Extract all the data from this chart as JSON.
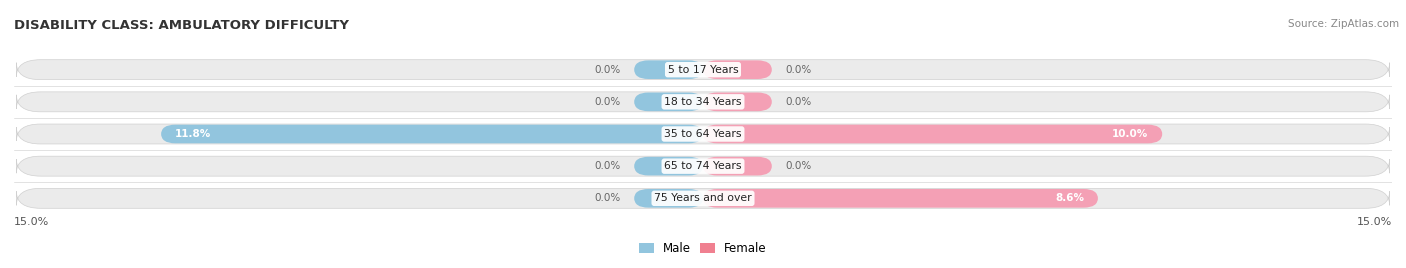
{
  "title": "DISABILITY CLASS: AMBULATORY DIFFICULTY",
  "source": "Source: ZipAtlas.com",
  "categories": [
    "5 to 17 Years",
    "18 to 34 Years",
    "35 to 64 Years",
    "65 to 74 Years",
    "75 Years and over"
  ],
  "male_values": [
    0.0,
    0.0,
    11.8,
    0.0,
    0.0
  ],
  "female_values": [
    0.0,
    0.0,
    10.0,
    0.0,
    8.6
  ],
  "max_val": 15.0,
  "male_color": "#92C5DE",
  "female_color": "#F4A0B5",
  "row_bg_color": "#EBEBEB",
  "label_outside_color": "#666666",
  "label_inside_color": "#ffffff",
  "title_color": "#333333",
  "bar_height": 0.62,
  "min_bar_for_display": 1.2,
  "legend_male_color": "#92C5DE",
  "legend_female_color": "#F08090"
}
